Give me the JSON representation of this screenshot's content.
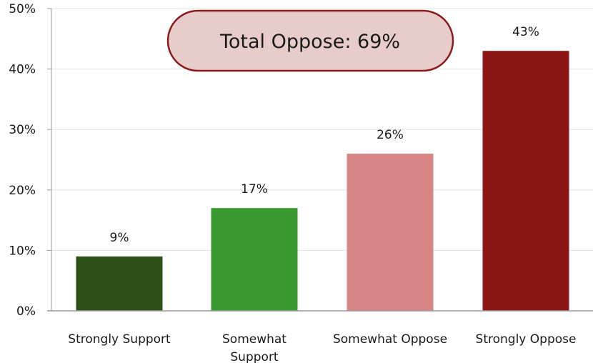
{
  "chart_data": {
    "type": "bar",
    "categories": [
      "Strongly Support",
      "Somewhat Support",
      "Somewhat Oppose",
      "Strongly Oppose"
    ],
    "category_lines": [
      [
        "Strongly Support"
      ],
      [
        "Somewhat",
        "Support"
      ],
      [
        "Somewhat Oppose"
      ],
      [
        "Strongly Oppose"
      ]
    ],
    "values": [
      9,
      17,
      26,
      43
    ],
    "value_labels": [
      "9%",
      "17%",
      "26%",
      "43%"
    ],
    "colors": [
      "#2e5118",
      "#3a9a32",
      "#d88585",
      "#8c1515"
    ],
    "yticks": [
      0,
      10,
      20,
      30,
      40,
      50
    ],
    "ytick_labels": [
      "0%",
      "10%",
      "20%",
      "30%",
      "40%",
      "50%"
    ],
    "ylim": [
      0,
      50
    ],
    "grid": true,
    "title": "",
    "xlabel": "",
    "ylabel": "",
    "annotation": {
      "text": "Total Oppose: 69%",
      "fill": "#e8cccc",
      "border": "#8c1a1a"
    }
  }
}
